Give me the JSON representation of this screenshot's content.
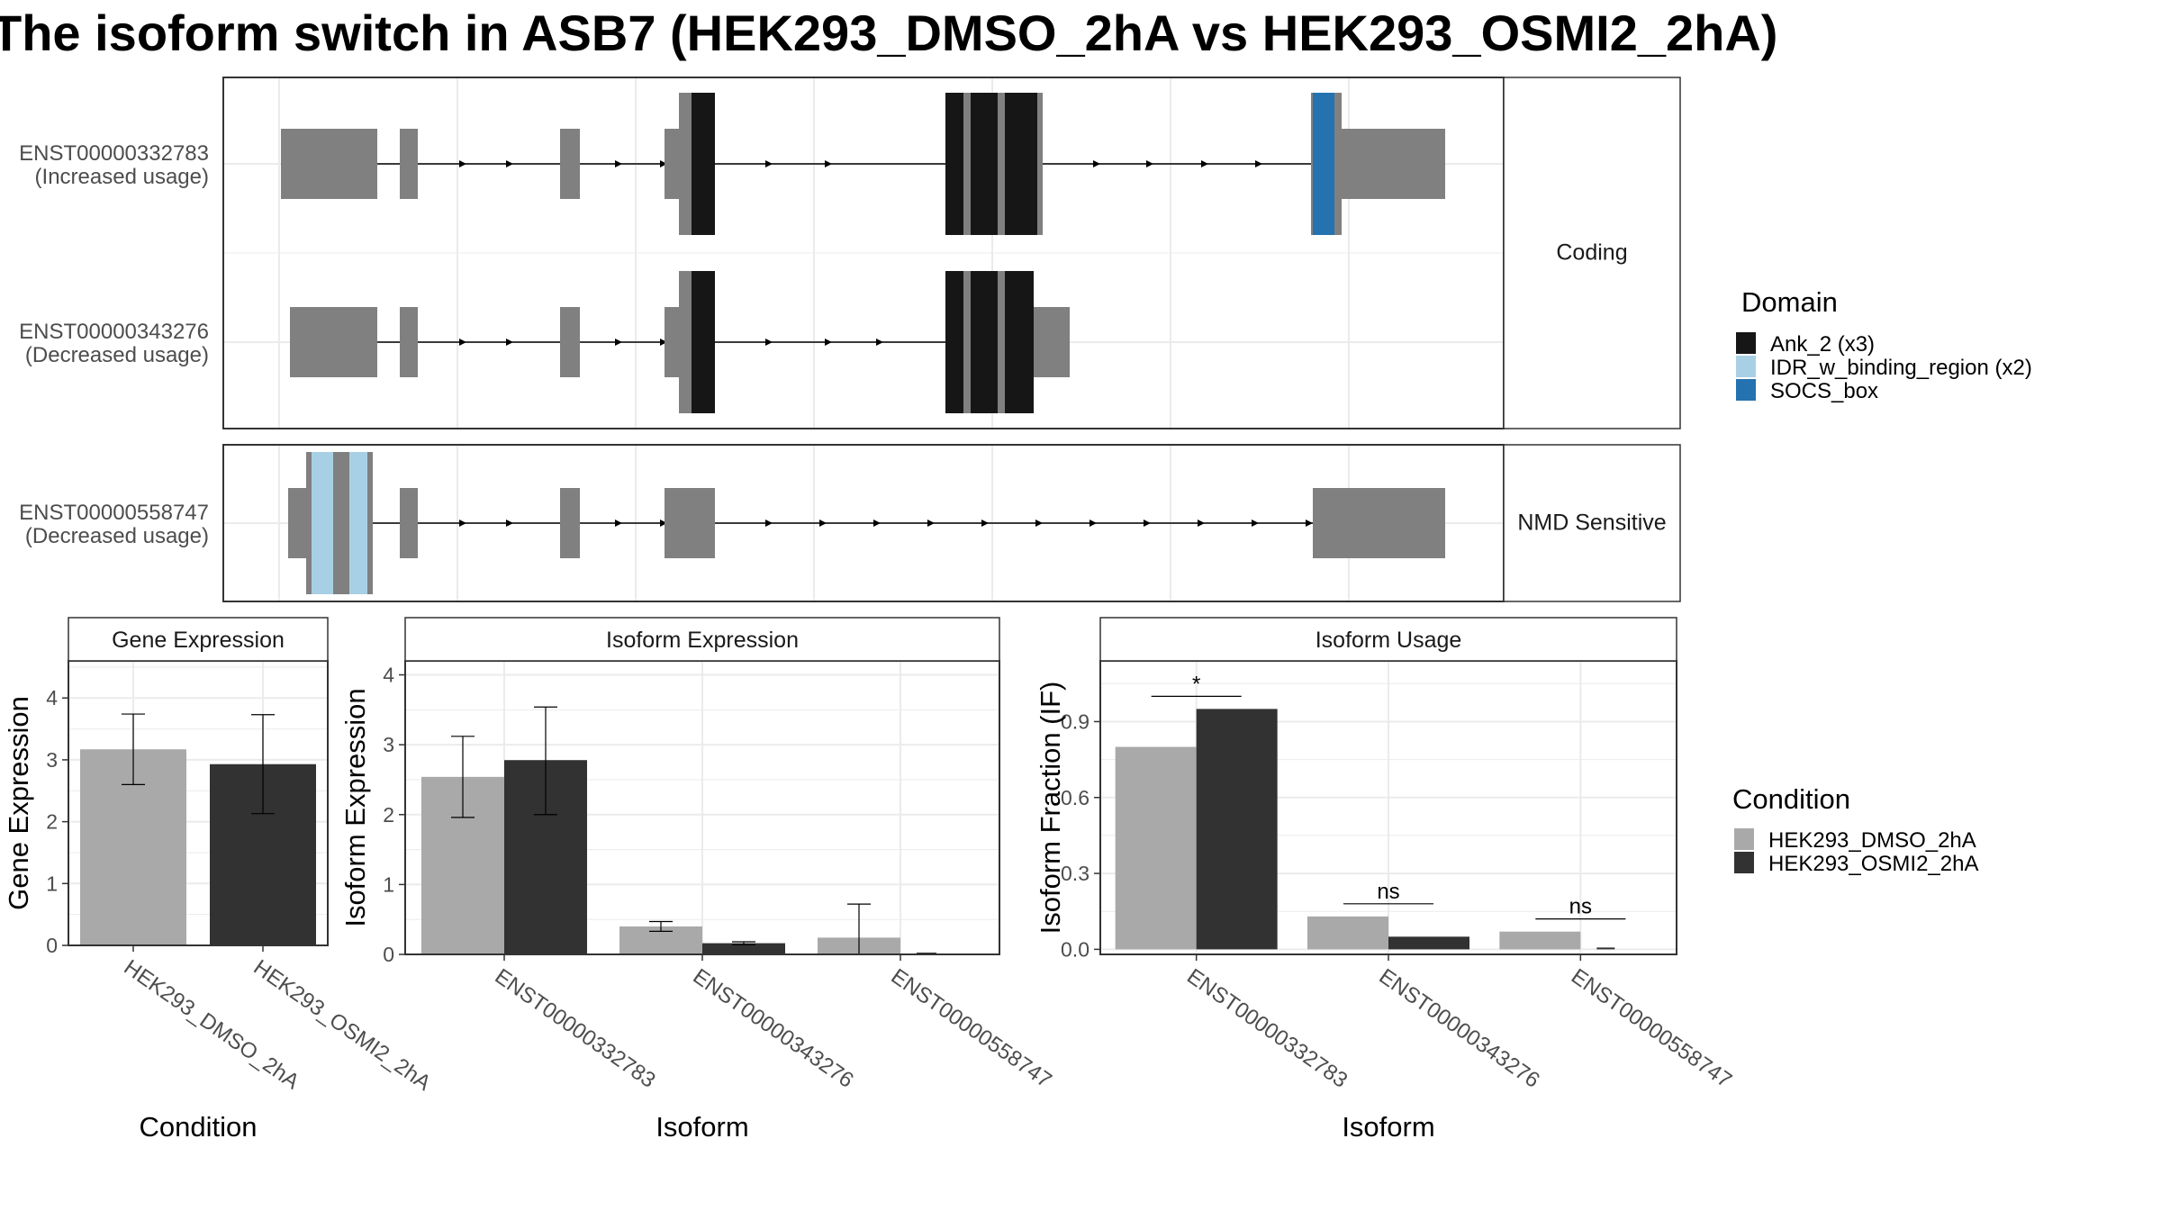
{
  "title": "The isoform switch in ASB7 (HEK293_DMSO_2hA vs HEK293_OSMI2_2hA)",
  "colors": {
    "exon": "#808080",
    "ank": "#161616",
    "idr": "#a8d0e4",
    "socs": "#2472b0",
    "cond1": "#a9a9a9",
    "cond2": "#323232",
    "panel_border": "#333333",
    "strip_fill": "#ffffff",
    "grid": "#ebebeb"
  },
  "isoform_panels": [
    {
      "strip": "Coding",
      "transcripts": [
        {
          "id": "ENST00000332783",
          "usage": "(Increased usage)"
        },
        {
          "id": "ENST00000343276",
          "usage": "(Decreased usage)"
        }
      ]
    },
    {
      "strip": "NMD Sensitive",
      "transcripts": [
        {
          "id": "ENST00000558747",
          "usage": "(Decreased usage)"
        }
      ]
    }
  ],
  "legend_domain": {
    "title": "Domain",
    "items": [
      {
        "label": "Ank_2 (x3)",
        "color": "#161616"
      },
      {
        "label": "IDR_w_binding_region (x2)",
        "color": "#a8d0e4"
      },
      {
        "label": "SOCS_box",
        "color": "#2472b0"
      }
    ]
  },
  "legend_condition": {
    "title": "Condition",
    "items": [
      {
        "label": "HEK293_DMSO_2hA",
        "color": "#a9a9a9"
      },
      {
        "label": "HEK293_OSMI2_2hA",
        "color": "#323232"
      }
    ]
  },
  "chart_data": [
    {
      "type": "bar",
      "title": "Gene Expression",
      "xlabel": "Condition",
      "ylabel": "Gene Expression",
      "ylim": [
        0,
        4.6
      ],
      "yticks": [
        0,
        1,
        2,
        3,
        4
      ],
      "categories": [
        "HEK293_DMSO_2hA",
        "HEK293_OSMI2_2hA"
      ],
      "series": [
        {
          "name": "HEK293_DMSO_2hA",
          "values": [
            3.17,
            null
          ],
          "err_low": [
            2.6,
            null
          ],
          "err_high": [
            3.74,
            null
          ]
        },
        {
          "name": "HEK293_OSMI2_2hA",
          "values": [
            null,
            2.93
          ],
          "err_low": [
            null,
            2.13
          ],
          "err_high": [
            null,
            3.73
          ]
        }
      ]
    },
    {
      "type": "bar",
      "title": "Isoform Expression",
      "xlabel": "Isoform",
      "ylabel": "Isoform Expression",
      "ylim": [
        0,
        4.2
      ],
      "yticks": [
        0,
        1,
        2,
        3,
        4
      ],
      "categories": [
        "ENST00000332783",
        "ENST00000343276",
        "ENST00000558747"
      ],
      "series": [
        {
          "name": "HEK293_DMSO_2hA",
          "values": [
            2.54,
            0.4,
            0.24
          ],
          "err_low": [
            1.96,
            0.33,
            0.0
          ],
          "err_high": [
            3.12,
            0.47,
            0.72
          ]
        },
        {
          "name": "HEK293_OSMI2_2hA",
          "values": [
            2.78,
            0.16,
            0.0
          ],
          "err_low": [
            2.0,
            0.14,
            0.0
          ],
          "err_high": [
            3.54,
            0.18,
            0.0
          ]
        }
      ]
    },
    {
      "type": "bar",
      "title": "Isoform Usage",
      "xlabel": "Isoform",
      "ylabel": "Isoform Fraction (IF)",
      "ylim": [
        -0.02,
        1.14
      ],
      "yticks": [
        0.0,
        0.3,
        0.6,
        0.9
      ],
      "ytick_labels": [
        "0.0",
        "0.3",
        "0.6",
        "0.9"
      ],
      "categories": [
        "ENST00000332783",
        "ENST00000343276",
        "ENST00000558747"
      ],
      "series": [
        {
          "name": "HEK293_DMSO_2hA",
          "values": [
            0.8,
            0.13,
            0.07
          ]
        },
        {
          "name": "HEK293_OSMI2_2hA",
          "values": [
            0.95,
            0.05,
            0.0
          ]
        }
      ],
      "significance": [
        {
          "category": "ENST00000332783",
          "label": "*",
          "y": 1.0
        },
        {
          "category": "ENST00000343276",
          "label": "ns",
          "y": 0.18
        },
        {
          "category": "ENST00000558747",
          "label": "ns",
          "y": 0.12
        }
      ]
    }
  ]
}
